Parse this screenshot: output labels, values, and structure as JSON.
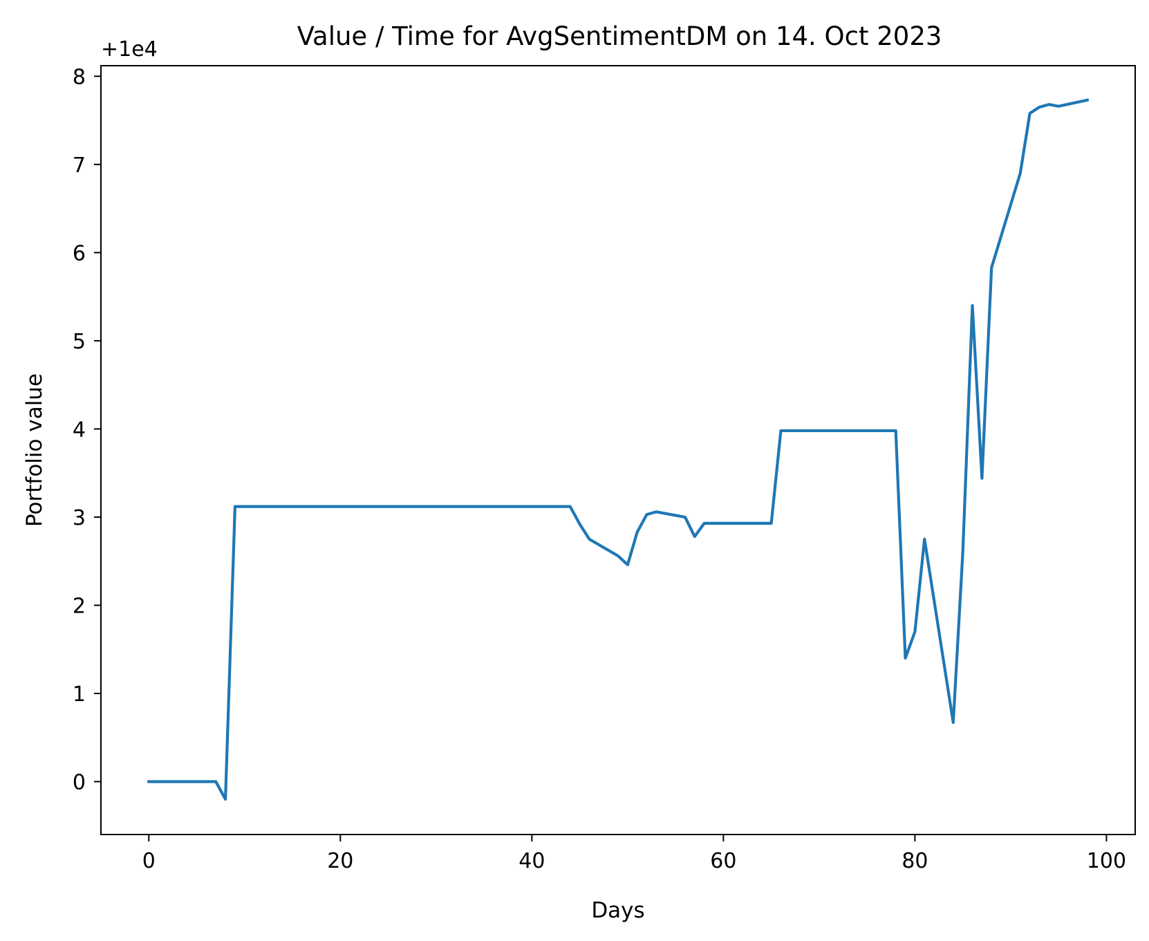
{
  "chart_data": {
    "type": "line",
    "title": "Value / Time for AvgSentimentDM on 14. Oct 2023",
    "xlabel": "Days",
    "ylabel": "Portfolio value",
    "y_offset_label": "+1e4",
    "xlim": [
      -5,
      103
    ],
    "ylim": [
      -0.6,
      8.12
    ],
    "x_ticks": [
      0,
      20,
      40,
      60,
      80,
      100
    ],
    "y_ticks": [
      0,
      1,
      2,
      3,
      4,
      5,
      6,
      7,
      8
    ],
    "grid": false,
    "legend": "none",
    "series": [
      {
        "color": "#1f77b4",
        "x": [
          0,
          7,
          8,
          9,
          44,
          45,
          46,
          49,
          50,
          51,
          52,
          53,
          56,
          57,
          58,
          65,
          66,
          78,
          79,
          80,
          81,
          84,
          85,
          86,
          87,
          88,
          91,
          92,
          93,
          94,
          95,
          98
        ],
        "y": [
          0,
          0,
          -0.2,
          3.12,
          3.12,
          2.92,
          2.75,
          2.56,
          2.46,
          2.83,
          3.03,
          3.06,
          3.0,
          2.78,
          2.93,
          2.93,
          3.98,
          3.98,
          1.4,
          1.7,
          2.75,
          0.67,
          2.6,
          5.4,
          3.44,
          5.83,
          6.9,
          7.58,
          7.65,
          7.68,
          7.66,
          7.73
        ]
      }
    ]
  }
}
